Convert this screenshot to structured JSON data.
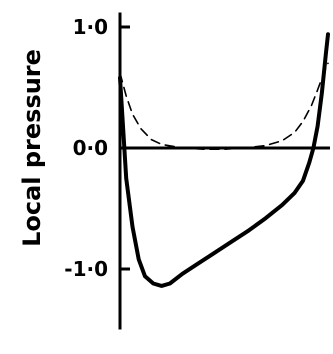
{
  "chart_data": {
    "type": "line",
    "title": "",
    "xlabel": "",
    "ylabel": "Local pressure",
    "ylim": [
      -1.5,
      1.12
    ],
    "yticks": [
      {
        "value": 1.0,
        "label": "1·0"
      },
      {
        "value": 0.0,
        "label": "0·0"
      },
      {
        "value": -1.0,
        "label": "-1·0"
      }
    ],
    "xlim": [
      0,
      1
    ],
    "zero_line": true,
    "grid": false,
    "series": [
      {
        "style": "solid",
        "color": "#000000",
        "points": [
          [
            0.0,
            0.58
          ],
          [
            0.01,
            0.3
          ],
          [
            0.03,
            -0.25
          ],
          [
            0.06,
            -0.65
          ],
          [
            0.09,
            -0.92
          ],
          [
            0.12,
            -1.06
          ],
          [
            0.16,
            -1.12
          ],
          [
            0.2,
            -1.14
          ],
          [
            0.24,
            -1.12
          ],
          [
            0.3,
            -1.04
          ],
          [
            0.38,
            -0.95
          ],
          [
            0.46,
            -0.86
          ],
          [
            0.54,
            -0.77
          ],
          [
            0.62,
            -0.68
          ],
          [
            0.7,
            -0.58
          ],
          [
            0.78,
            -0.47
          ],
          [
            0.84,
            -0.37
          ],
          [
            0.88,
            -0.27
          ],
          [
            0.91,
            -0.12
          ],
          [
            0.93,
            0.0
          ],
          [
            0.95,
            0.18
          ],
          [
            0.97,
            0.45
          ],
          [
            0.99,
            0.78
          ],
          [
            1.0,
            0.94
          ]
        ]
      },
      {
        "style": "dashed",
        "color": "#000000",
        "points": [
          [
            0.0,
            0.62
          ],
          [
            0.03,
            0.43
          ],
          [
            0.06,
            0.28
          ],
          [
            0.1,
            0.16
          ],
          [
            0.15,
            0.07
          ],
          [
            0.2,
            0.03
          ],
          [
            0.3,
            0.0
          ],
          [
            0.4,
            -0.01
          ],
          [
            0.5,
            -0.01
          ],
          [
            0.6,
            0.0
          ],
          [
            0.7,
            0.02
          ],
          [
            0.78,
            0.06
          ],
          [
            0.84,
            0.13
          ],
          [
            0.88,
            0.22
          ],
          [
            0.92,
            0.35
          ],
          [
            0.95,
            0.48
          ],
          [
            0.98,
            0.62
          ],
          [
            1.0,
            0.7
          ]
        ]
      }
    ]
  }
}
